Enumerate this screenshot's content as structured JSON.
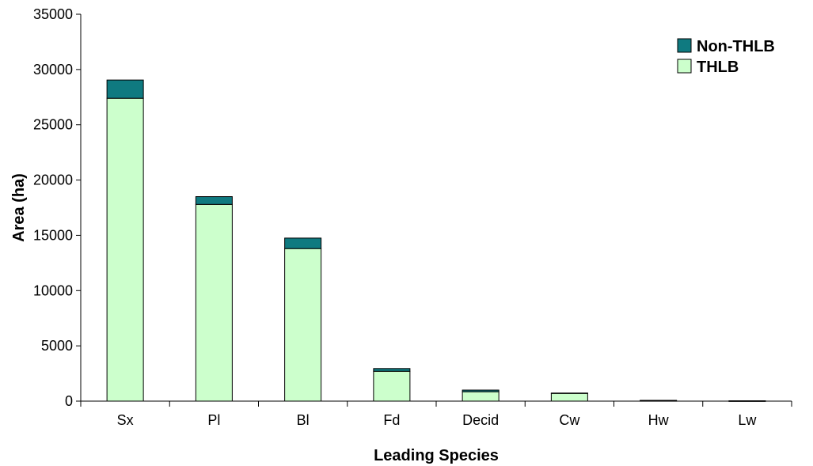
{
  "chart_data": {
    "type": "bar",
    "stacked": true,
    "title": "",
    "xlabel": "Leading Species",
    "ylabel": "Area (ha)",
    "ylim": [
      0,
      35000
    ],
    "yticks": [
      "0",
      "5000",
      "10000",
      "15000",
      "20000",
      "25000",
      "30000",
      "35000"
    ],
    "categories": [
      "Sx",
      "Pl",
      "Bl",
      "Fd",
      "Decid",
      "Cw",
      "Hw",
      "Lw"
    ],
    "series": [
      {
        "name": "THLB",
        "color": "#ccffcc",
        "values": [
          27400,
          17800,
          13800,
          2700,
          850,
          700,
          30,
          10
        ]
      },
      {
        "name": "Non-THLB",
        "color": "#0f7a80",
        "values": [
          1650,
          700,
          950,
          250,
          150,
          30,
          40,
          20
        ]
      }
    ],
    "legend": {
      "placement": "top-right",
      "items": [
        {
          "label": "Non-THLB",
          "color": "#0f7a80"
        },
        {
          "label": "THLB",
          "color": "#ccffcc"
        }
      ]
    },
    "grid": false
  }
}
